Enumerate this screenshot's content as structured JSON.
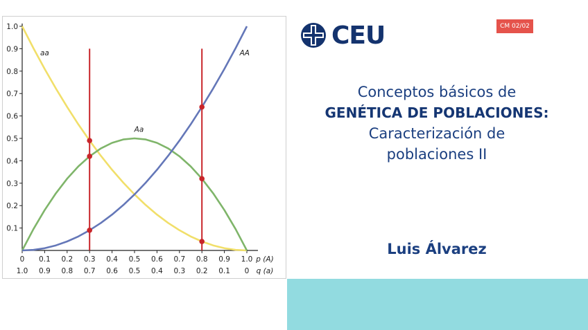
{
  "slide": {
    "logo_text": "CEU",
    "badge": "CM 02/02",
    "title_line1": "Conceptos básicos de",
    "title_line2": "GENÉTICA DE POBLACIONES:",
    "title_line3": "Caracterización de",
    "title_line4": "poblaciones II",
    "author": "Luis Álvarez"
  },
  "colors": {
    "title_blue": "#1b3f80",
    "badge_red": "#e5534b",
    "band_cyan": "#92dbe0",
    "aa_yellow": "#f1df6a",
    "AA_blue": "#6477b8",
    "Aa_green": "#7fb56a",
    "marker_red": "#c8252a"
  },
  "chart_data": {
    "type": "line",
    "x_label_p": "p (A)",
    "x_label_q": "q (a)",
    "x_ticks_p": [
      "0",
      "0.1",
      "0.2",
      "0.3",
      "0.4",
      "0.5",
      "0.6",
      "0.7",
      "0.8",
      "0.9",
      "1.0"
    ],
    "x_ticks_q": [
      "1.0",
      "0.9",
      "0.8",
      "0.7",
      "0.6",
      "0.5",
      "0.4",
      "0.3",
      "0.2",
      "0.1",
      "0"
    ],
    "y_ticks": [
      "1.0",
      "0.9",
      "0.8",
      "0.7",
      "0.6",
      "0.5",
      "0.4",
      "0.3",
      "0.2",
      "0.1"
    ],
    "xlim": [
      0,
      1
    ],
    "ylim": [
      0,
      1
    ],
    "x": [
      0,
      0.05,
      0.1,
      0.15,
      0.2,
      0.25,
      0.3,
      0.35,
      0.4,
      0.45,
      0.5,
      0.55,
      0.6,
      0.65,
      0.7,
      0.75,
      0.8,
      0.85,
      0.9,
      0.95,
      1
    ],
    "series": [
      {
        "name": "aa",
        "color": "#f1df6a",
        "values": [
          1,
          0.9025,
          0.81,
          0.7225,
          0.64,
          0.5625,
          0.49,
          0.4225,
          0.36,
          0.3025,
          0.25,
          0.2025,
          0.16,
          0.1225,
          0.09,
          0.0625,
          0.04,
          0.0225,
          0.01,
          0.0025,
          0
        ]
      },
      {
        "name": "Aa",
        "color": "#7fb56a",
        "values": [
          0,
          0.095,
          0.18,
          0.255,
          0.32,
          0.375,
          0.42,
          0.455,
          0.48,
          0.495,
          0.5,
          0.495,
          0.48,
          0.455,
          0.42,
          0.375,
          0.32,
          0.255,
          0.18,
          0.095,
          0
        ]
      },
      {
        "name": "AA",
        "color": "#6477b8",
        "values": [
          0,
          0.0025,
          0.01,
          0.0225,
          0.04,
          0.0625,
          0.09,
          0.1225,
          0.16,
          0.2025,
          0.25,
          0.3025,
          0.36,
          0.4225,
          0.49,
          0.5625,
          0.64,
          0.7225,
          0.81,
          0.9025,
          1
        ]
      }
    ],
    "vertical_lines": [
      0.3,
      0.8
    ],
    "vertical_line_range": [
      0,
      0.9
    ],
    "markers": [
      {
        "x": 0.3,
        "y": 0.49
      },
      {
        "x": 0.3,
        "y": 0.42
      },
      {
        "x": 0.3,
        "y": 0.09
      },
      {
        "x": 0.8,
        "y": 0.64
      },
      {
        "x": 0.8,
        "y": 0.32
      },
      {
        "x": 0.8,
        "y": 0.04
      }
    ],
    "curve_labels": [
      {
        "text": "aa",
        "x": 0.1,
        "y": 0.87
      },
      {
        "text": "Aa",
        "x": 0.52,
        "y": 0.53
      },
      {
        "text": "AA",
        "x": 0.99,
        "y": 0.87
      }
    ]
  }
}
